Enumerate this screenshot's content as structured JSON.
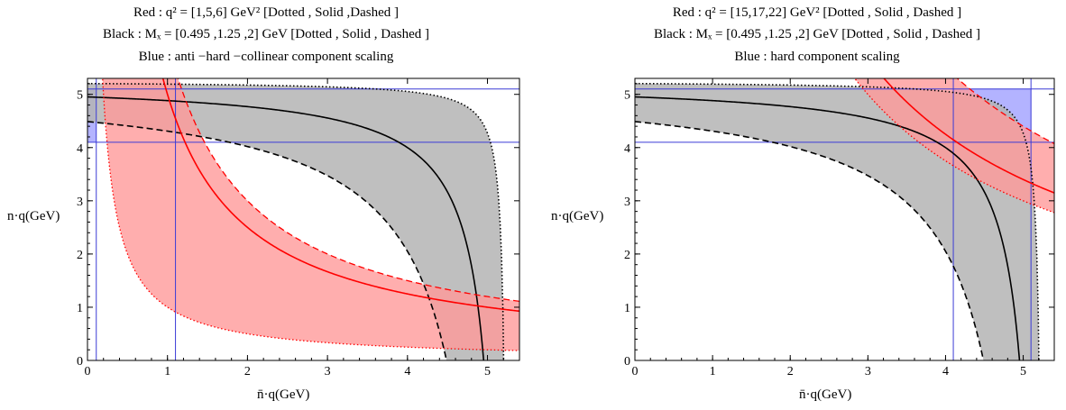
{
  "colors": {
    "red_band": "#ff9a9a",
    "red_line": "#ff0000",
    "gray_band": "#b4b4b4",
    "black_line": "#000000",
    "blue_line": "#3b3bd6",
    "overlap_purple": "#8b4aa0"
  },
  "chart_data": [
    {
      "type": "area",
      "title": [
        "Red : q² = [1,5,6] GeV² [Dotted , Solid ,Dashed ]",
        "Black : Mₓ = [0.495 ,1.25 ,2] GeV [Dotted , Solid , Dashed ]",
        "Blue : anti −hard −collinear component scaling"
      ],
      "xlabel": "n̄·q(GeV)",
      "ylabel": "n·q(GeV)",
      "xlim": [
        0,
        5.4
      ],
      "ylim": [
        0,
        5.3
      ],
      "xticks": [
        "0",
        "1",
        "2",
        "3",
        "4",
        "5"
      ],
      "yticks": [
        "0",
        "1",
        "2",
        "3",
        "4",
        "5"
      ],
      "red_q2": [
        1,
        5,
        6
      ],
      "black_Mx": [
        0.495,
        1.25,
        2
      ],
      "blue_lines": {
        "vertical": [
          0.11,
          1.1
        ],
        "horizontal": [
          4.1,
          5.1
        ]
      },
      "blue_region": {
        "x": [
          0,
          0.11
        ],
        "y": [
          4.1,
          5.1
        ]
      }
    },
    {
      "type": "area",
      "title": [
        "Red : q² = [15,17,22] GeV² [Dotted , Solid , Dashed ]",
        "Black : Mₓ = [0.495 ,1.25 ,2] GeV [Dotted , Solid , Dashed ]",
        "Blue : hard component scaling"
      ],
      "xlabel": "n̄·q(GeV)",
      "ylabel": "n·q(GeV)",
      "xlim": [
        0,
        5.4
      ],
      "ylim": [
        0,
        5.3
      ],
      "xticks": [
        "0",
        "1",
        "2",
        "3",
        "4",
        "5"
      ],
      "yticks": [
        "0",
        "1",
        "2",
        "3",
        "4",
        "5"
      ],
      "red_q2": [
        15,
        17,
        22
      ],
      "black_Mx": [
        0.495,
        1.25,
        2
      ],
      "blue_lines": {
        "vertical": [
          4.1,
          5.1
        ],
        "horizontal": [
          4.1,
          5.1
        ]
      },
      "blue_region": {
        "x": [
          4.1,
          5.1
        ],
        "y": [
          4.1,
          5.1
        ]
      }
    }
  ]
}
